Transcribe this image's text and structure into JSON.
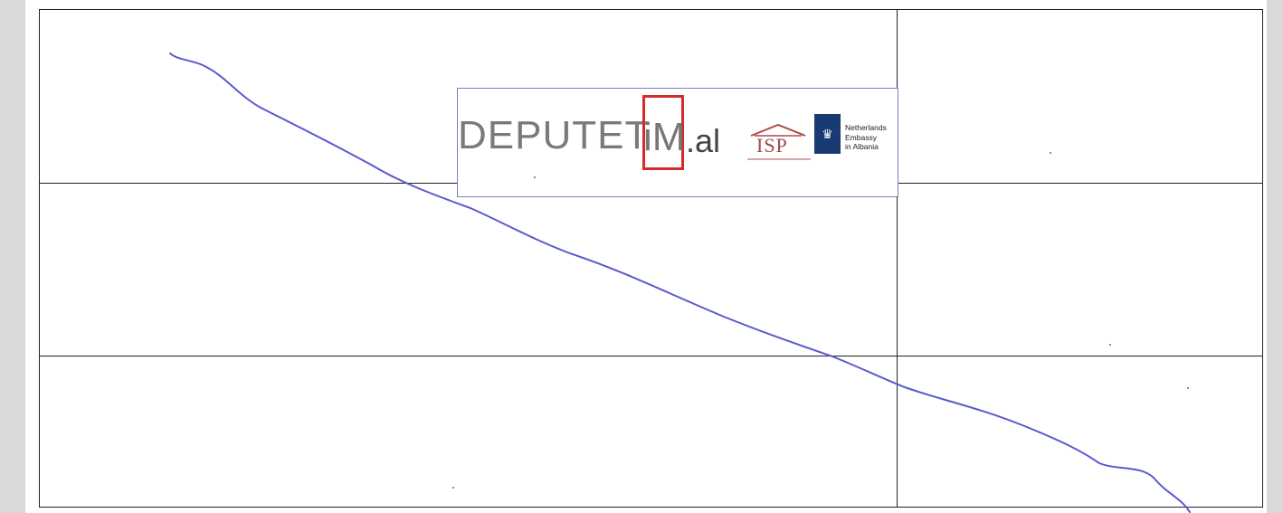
{
  "logo": {
    "brand_text": "DEPUTET",
    "brand_highlight": "iM",
    "brand_suffix": ".al",
    "partner_abbr": "ISP",
    "embassy_lines": [
      "Netherlands",
      "Embassy",
      "in Albania"
    ]
  },
  "colors": {
    "signature": "#5a5ad0",
    "brand_red": "#d42c2c",
    "embassy_blue": "#1a3a74"
  }
}
